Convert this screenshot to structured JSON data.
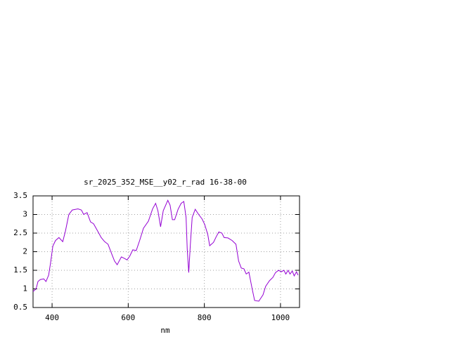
{
  "chart_data": {
    "type": "line",
    "title": "sr_2025_352_MSE__y02_r_rad 16-38-00",
    "x_label": "nm",
    "color": "#9400d3",
    "grid": true,
    "xlim": [
      350,
      1050
    ],
    "ylim": [
      0.5,
      3.5
    ],
    "xticks": [
      400,
      600,
      800,
      1000
    ],
    "yticks": [
      0.5,
      1,
      1.5,
      2,
      2.5,
      3,
      3.5
    ],
    "x": [
      350,
      358,
      363,
      369,
      378,
      384,
      391,
      396,
      402,
      409,
      418,
      428,
      435,
      444,
      453,
      468,
      477,
      483,
      492,
      501,
      509,
      520,
      529,
      538,
      547,
      557,
      564,
      571,
      582,
      590,
      597,
      604,
      612,
      621,
      630,
      640,
      653,
      664,
      672,
      678,
      685,
      692,
      704,
      710,
      716,
      722,
      731,
      739,
      746,
      752,
      755,
      759,
      763,
      768,
      776,
      785,
      794,
      801,
      809,
      814,
      824,
      831,
      838,
      846,
      852,
      862,
      873,
      883,
      890,
      897,
      904,
      910,
      917,
      925,
      932,
      943,
      954,
      961,
      971,
      980,
      987,
      995,
      1002,
      1009,
      1014,
      1020,
      1025,
      1031,
      1036,
      1042,
      1046
    ],
    "values": [
      0.93,
      1.0,
      1.2,
      1.25,
      1.27,
      1.2,
      1.37,
      1.7,
      2.15,
      2.3,
      2.38,
      2.27,
      2.55,
      3.0,
      3.12,
      3.15,
      3.12,
      3.0,
      3.05,
      2.8,
      2.75,
      2.55,
      2.38,
      2.27,
      2.2,
      1.93,
      1.75,
      1.65,
      1.86,
      1.82,
      1.78,
      1.88,
      2.05,
      2.03,
      2.3,
      2.63,
      2.82,
      3.15,
      3.3,
      3.1,
      2.67,
      3.1,
      3.38,
      3.25,
      2.86,
      2.86,
      3.14,
      3.3,
      3.35,
      2.92,
      2.07,
      1.44,
      2.16,
      2.92,
      3.14,
      3.0,
      2.88,
      2.73,
      2.46,
      2.16,
      2.25,
      2.4,
      2.53,
      2.5,
      2.38,
      2.37,
      2.3,
      2.2,
      1.75,
      1.56,
      1.54,
      1.4,
      1.45,
      1.03,
      0.69,
      0.67,
      0.84,
      1.07,
      1.22,
      1.31,
      1.44,
      1.5,
      1.46,
      1.5,
      1.4,
      1.5,
      1.4,
      1.48,
      1.35,
      1.46,
      1.37
    ]
  }
}
